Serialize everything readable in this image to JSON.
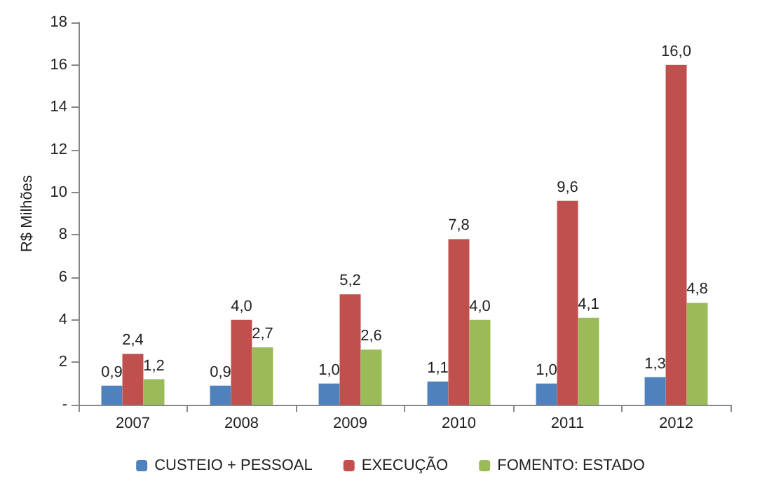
{
  "chart_data": {
    "type": "bar",
    "ylabel": "R$ Milhões",
    "categories": [
      "2007",
      "2008",
      "2009",
      "2010",
      "2011",
      "2012"
    ],
    "series": [
      {
        "name": "CUSTEIO + PESSOAL",
        "color": "#4f81bd",
        "values": [
          0.9,
          0.9,
          1.0,
          1.1,
          1.0,
          1.3
        ],
        "value_labels": [
          "0,9",
          "0,9",
          "1,0",
          "1,1",
          "1,0",
          "1,3"
        ]
      },
      {
        "name": "EXECUÇÃO",
        "color": "#c0504d",
        "values": [
          2.4,
          4.0,
          5.2,
          7.8,
          9.6,
          16.0
        ],
        "value_labels": [
          "2,4",
          "4,0",
          "5,2",
          "7,8",
          "9,6",
          "16,0"
        ]
      },
      {
        "name": "FOMENTO: ESTADO",
        "color": "#9bbb59",
        "values": [
          1.2,
          2.7,
          2.6,
          4.0,
          4.1,
          4.8
        ],
        "value_labels": [
          "1,2",
          "2,7",
          "2,6",
          "4,0",
          "4,1",
          "4,8"
        ]
      }
    ],
    "ylim": [
      0,
      18
    ],
    "yticks": [
      {
        "value": 0,
        "label": "-"
      },
      2,
      4,
      6,
      8,
      10,
      12,
      14,
      16,
      18
    ],
    "grid": false,
    "legend": "bottom"
  }
}
